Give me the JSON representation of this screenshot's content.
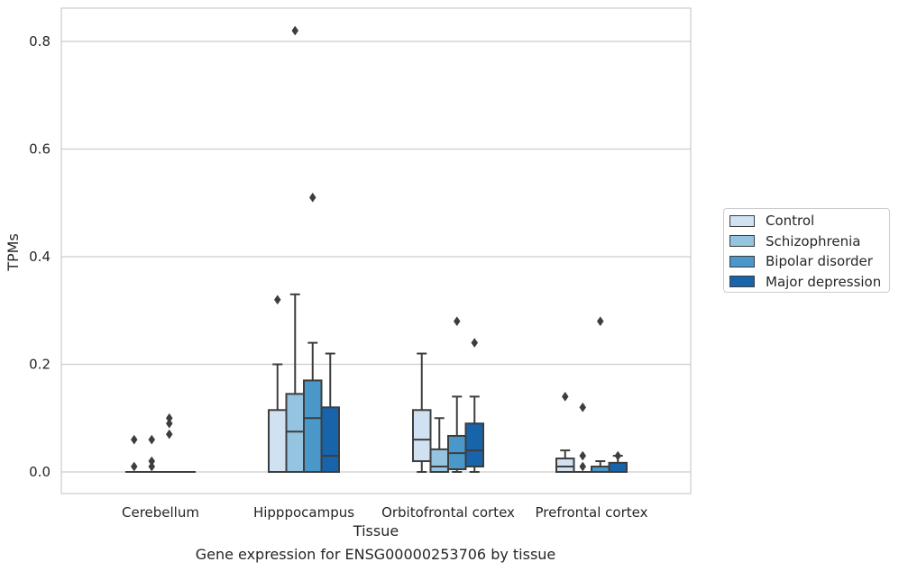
{
  "caption": "Gene expression for ENSG00000253706 by tissue",
  "chart_data": {
    "type": "box",
    "xlabel": "Tissue",
    "ylabel": "TPMs",
    "categories": [
      "Cerebellum",
      "Hipppocampus",
      "Orbitofrontal cortex",
      "Prefrontal cortex"
    ],
    "ylim": [
      -0.04,
      0.862
    ],
    "yticks": [
      0.0,
      0.2,
      0.4,
      0.6,
      0.8
    ],
    "ytick_labels": [
      "0.0",
      "0.2",
      "0.4",
      "0.6",
      "0.8"
    ],
    "grid": "horizontal",
    "legend_position": "right, outside",
    "series": [
      {
        "name": "Control",
        "color": "#d0e1f2",
        "boxes": [
          {
            "whislo": 0.0,
            "q1": 0.0,
            "med": 0.0,
            "q3": 0.0,
            "whishi": 0.0,
            "fliers": [
              0.01,
              0.06
            ]
          },
          {
            "whislo": 0.0,
            "q1": 0.0,
            "med": 0.0,
            "q3": 0.115,
            "whishi": 0.2,
            "fliers": [
              0.32
            ]
          },
          {
            "whislo": 0.0,
            "q1": 0.02,
            "med": 0.06,
            "q3": 0.115,
            "whishi": 0.22,
            "fliers": []
          },
          {
            "whislo": 0.0,
            "q1": 0.0,
            "med": 0.01,
            "q3": 0.025,
            "whishi": 0.04,
            "fliers": [
              0.14
            ]
          }
        ]
      },
      {
        "name": "Schizophrenia",
        "color": "#94c4df",
        "boxes": [
          {
            "whislo": 0.0,
            "q1": 0.0,
            "med": 0.0,
            "q3": 0.0,
            "whishi": 0.0,
            "fliers": [
              0.01,
              0.02,
              0.06
            ]
          },
          {
            "whislo": 0.0,
            "q1": 0.0,
            "med": 0.075,
            "q3": 0.145,
            "whishi": 0.33,
            "fliers": [
              0.82
            ]
          },
          {
            "whislo": 0.0,
            "q1": 0.0,
            "med": 0.01,
            "q3": 0.042,
            "whishi": 0.1,
            "fliers": []
          },
          {
            "whislo": 0.0,
            "q1": 0.0,
            "med": 0.0,
            "q3": 0.0,
            "whishi": 0.0,
            "fliers": [
              0.01,
              0.03,
              0.12
            ]
          }
        ]
      },
      {
        "name": "Bipolar disorder",
        "color": "#4a98c9",
        "boxes": [
          {
            "whislo": 0.0,
            "q1": 0.0,
            "med": 0.0,
            "q3": 0.0,
            "whishi": 0.0,
            "fliers": [
              0.07,
              0.09,
              0.1
            ]
          },
          {
            "whislo": 0.0,
            "q1": 0.0,
            "med": 0.1,
            "q3": 0.17,
            "whishi": 0.24,
            "fliers": [
              0.51
            ]
          },
          {
            "whislo": 0.0,
            "q1": 0.005,
            "med": 0.035,
            "q3": 0.067,
            "whishi": 0.14,
            "fliers": [
              0.28
            ]
          },
          {
            "whislo": 0.0,
            "q1": 0.0,
            "med": 0.0,
            "q3": 0.01,
            "whishi": 0.02,
            "fliers": [
              0.28
            ]
          }
        ]
      },
      {
        "name": "Major depression",
        "color": "#1764ab",
        "boxes": [
          {
            "whislo": 0.0,
            "q1": 0.0,
            "med": 0.0,
            "q3": 0.0,
            "whishi": 0.0,
            "fliers": []
          },
          {
            "whislo": 0.0,
            "q1": 0.0,
            "med": 0.03,
            "q3": 0.12,
            "whishi": 0.22,
            "fliers": []
          },
          {
            "whislo": 0.0,
            "q1": 0.01,
            "med": 0.04,
            "q3": 0.09,
            "whishi": 0.14,
            "fliers": [
              0.24
            ]
          },
          {
            "whislo": 0.0,
            "q1": 0.0,
            "med": 0.0,
            "q3": 0.017,
            "whishi": 0.03,
            "fliers": [
              0.03
            ]
          }
        ]
      }
    ]
  }
}
